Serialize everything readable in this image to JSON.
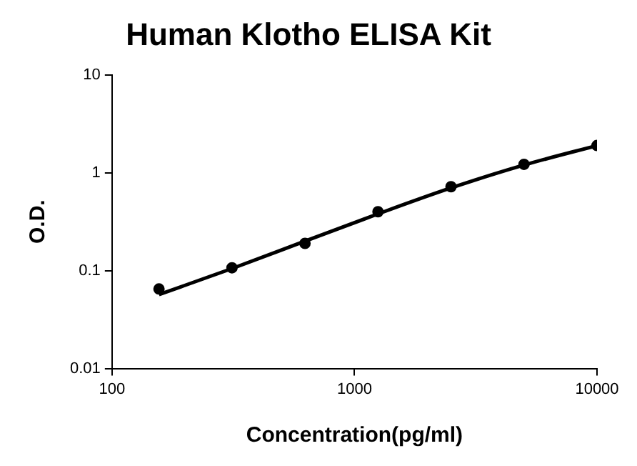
{
  "chart_data": {
    "type": "scatter",
    "title": "Human Klotho ELISA Kit",
    "xlabel": "Concentration(pg/ml)",
    "ylabel": "O.D.",
    "log": "xy",
    "xlim": [
      100,
      10000
    ],
    "ylim": [
      0.01,
      10
    ],
    "xticks": [
      100,
      1000,
      10000
    ],
    "yticks": [
      0.01,
      0.1,
      1,
      10
    ],
    "grid": false,
    "legend": false,
    "series": [
      {
        "type": "scatter",
        "color": "#000000",
        "marker": "circle",
        "x": [
          156.25,
          312.5,
          625,
          1250,
          2500,
          5000,
          10000
        ],
        "values": [
          0.065,
          0.107,
          0.19,
          0.4,
          0.72,
          1.22,
          1.9
        ]
      },
      {
        "type": "line",
        "color": "#000000",
        "marker": "none",
        "line_style": "solid",
        "x": [
          156.25,
          312.5,
          625,
          1250,
          2500,
          5000,
          10000
        ],
        "values": [
          0.057,
          0.105,
          0.2,
          0.38,
          0.7,
          1.2,
          1.9
        ]
      }
    ]
  }
}
